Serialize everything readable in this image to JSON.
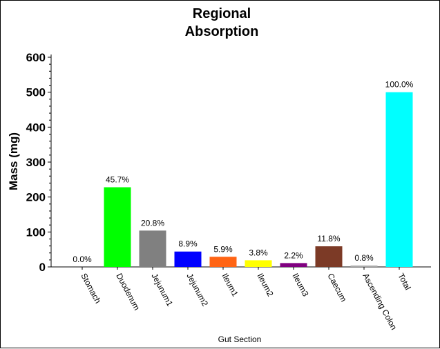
{
  "chart_data": {
    "type": "bar",
    "title": [
      "Regional",
      "Absorption"
    ],
    "xlabel": "Gut Section",
    "ylabel": "Mass (mg)",
    "ylim": [
      0,
      600
    ],
    "yticks": [
      0,
      100,
      200,
      300,
      400,
      500,
      600
    ],
    "categories": [
      "Stomach",
      "Duodenum",
      "Jejunum1",
      "Jejunum2",
      "Ileum1",
      "Ileum2",
      "Ileum3",
      "Caecum",
      "Ascending Colon",
      "Total"
    ],
    "values": [
      0,
      228,
      104,
      44,
      29,
      19,
      11,
      59,
      4,
      500
    ],
    "labels": [
      "0.0%",
      "45.7%",
      "20.8%",
      "8.9%",
      "5.9%",
      "3.8%",
      "2.2%",
      "11.8%",
      "0.8%",
      "100.0%"
    ],
    "colors": [
      "#ff0000",
      "#00ff00",
      "#808080",
      "#0000ff",
      "#ff6414",
      "#ffff00",
      "#800080",
      "#7c3a26",
      "#a9a9a9",
      "#00ffff"
    ],
    "grid": false,
    "legend": "none"
  }
}
